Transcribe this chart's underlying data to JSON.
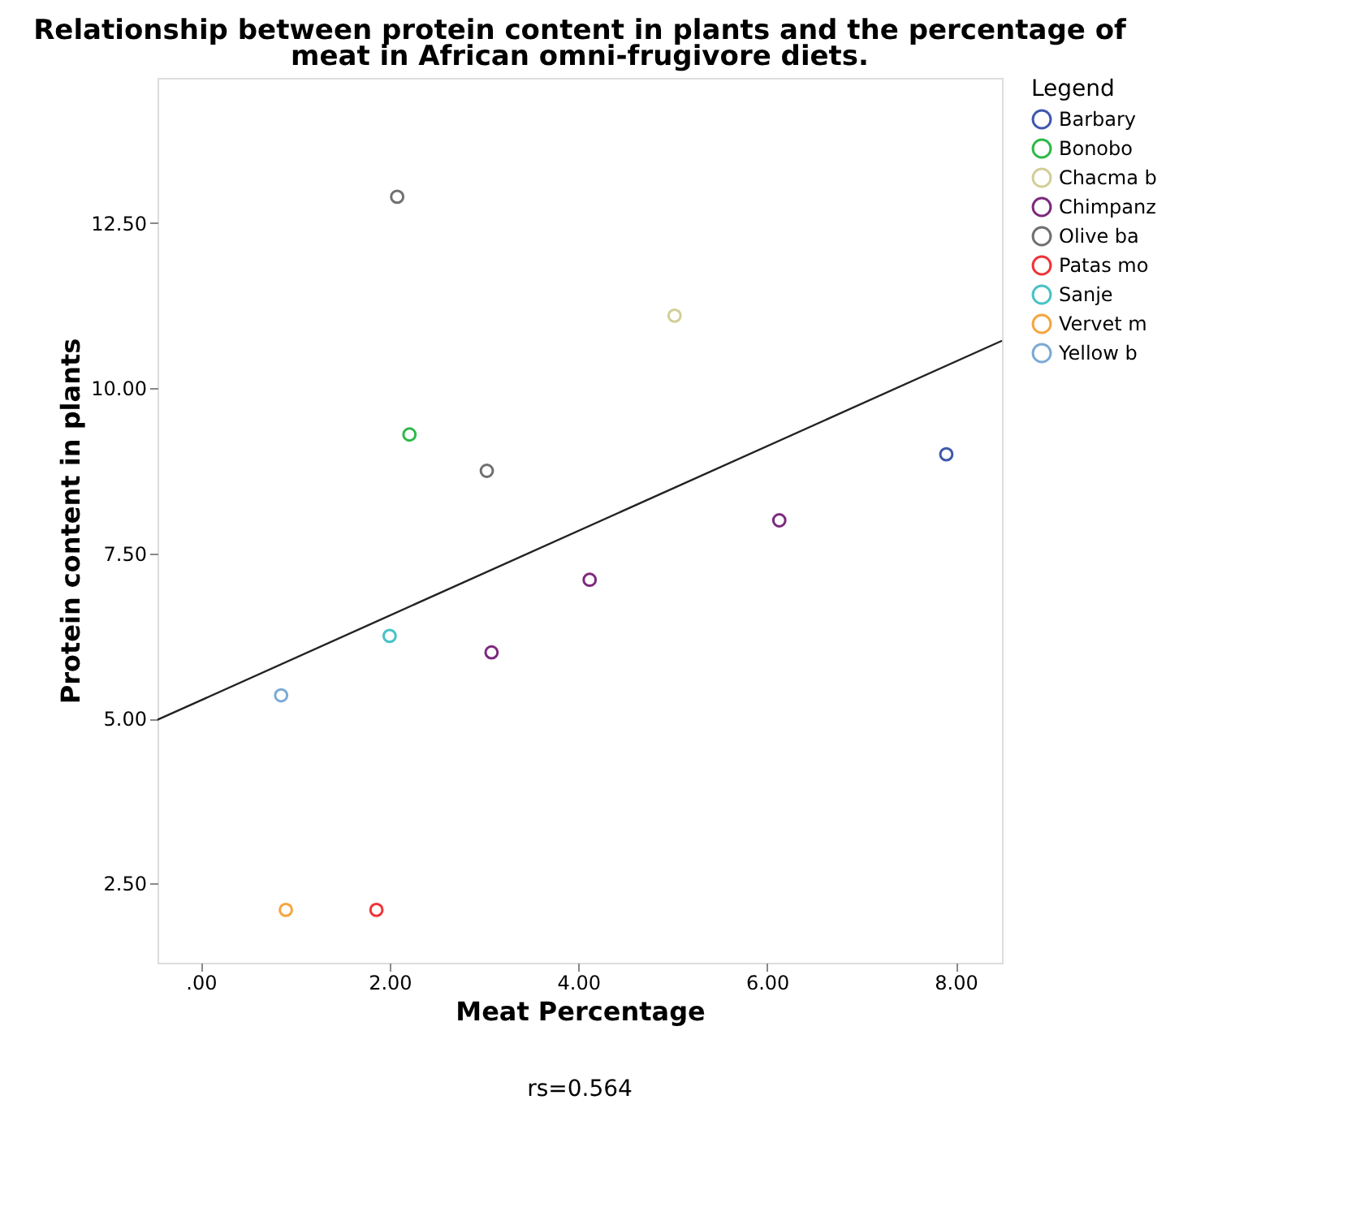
{
  "chart_data": {
    "type": "scatter",
    "title": "Relationship between protein content in plants and the percentage of meat in African omni-frugivore diets.",
    "xlabel": "Meat Percentage",
    "ylabel": "Protein content in plants",
    "legend_title": "Legend",
    "annotations": [
      "rs=0.564"
    ],
    "xlim": [
      -0.46,
      8.49
    ],
    "ylim": [
      1.3,
      14.7
    ],
    "xticks": [
      {
        "value": 0,
        "label": ".00"
      },
      {
        "value": 2,
        "label": "2.00"
      },
      {
        "value": 4,
        "label": "4.00"
      },
      {
        "value": 6,
        "label": "6.00"
      },
      {
        "value": 8,
        "label": "8.00"
      }
    ],
    "yticks": [
      {
        "value": 2.5,
        "label": "2.50"
      },
      {
        "value": 5,
        "label": "5.00"
      },
      {
        "value": 7.5,
        "label": "7.50"
      },
      {
        "value": 10,
        "label": "10.00"
      },
      {
        "value": 12.5,
        "label": "12.50"
      }
    ],
    "grid": false,
    "legend": "top right",
    "marker": "circle",
    "series": [
      {
        "name": "Barbary",
        "color": "#3e58ac",
        "x": [
          7.9
        ],
        "values": [
          9.0
        ]
      },
      {
        "name": "Bonobo",
        "color": "#2eb848",
        "x": [
          2.21
        ],
        "values": [
          9.3
        ]
      },
      {
        "name": "Chacma b",
        "color": "#d3ce97",
        "x": [
          5.02
        ],
        "values": [
          11.1
        ]
      },
      {
        "name": "Chimpanz",
        "color": "#7c287d",
        "x": [
          3.08,
          4.12,
          6.13
        ],
        "values": [
          6.0,
          7.1,
          8.0
        ]
      },
      {
        "name": "Olive ba",
        "color": "#707070",
        "x": [
          2.08,
          3.03
        ],
        "values": [
          12.9,
          8.75
        ]
      },
      {
        "name": "Patas mo",
        "color": "#ef3338",
        "x": [
          1.86
        ],
        "values": [
          2.1
        ]
      },
      {
        "name": "Sanje",
        "color": "#48c2c5",
        "x": [
          2.0
        ],
        "values": [
          6.25
        ]
      },
      {
        "name": "Vervet m",
        "color": "#f5a540",
        "x": [
          0.9
        ],
        "values": [
          2.1
        ]
      },
      {
        "name": "Yellow b",
        "color": "#7aaad5",
        "x": [
          0.85
        ],
        "values": [
          5.35
        ]
      },
      {
        "type": "line",
        "color": "#222222",
        "x": [
          -0.46,
          8.49
        ],
        "values": [
          4.98,
          10.72
        ],
        "line_style": "solid",
        "marker": "none"
      }
    ]
  }
}
